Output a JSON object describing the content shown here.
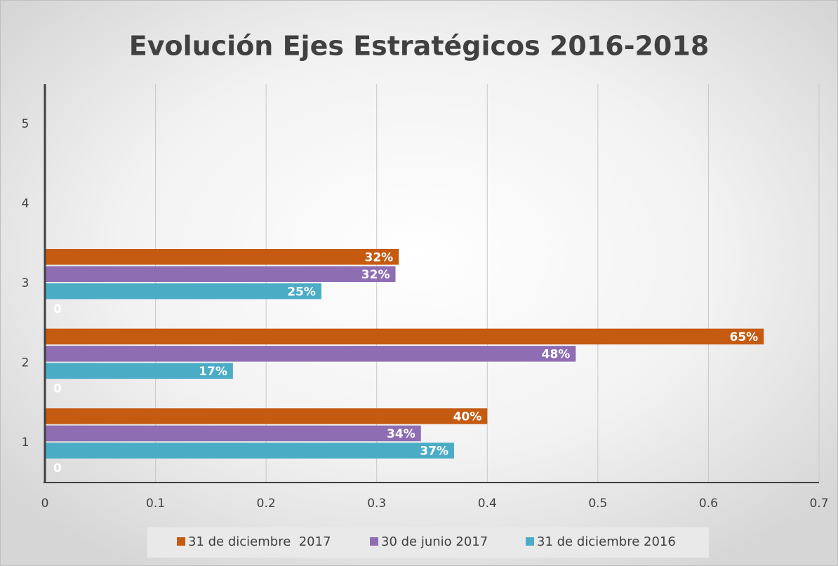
{
  "chart_data": {
    "type": "hbar",
    "title": "Evolución Ejes Estratégicos 2016-2018",
    "categories": [
      "1",
      "2",
      "3",
      "4",
      "5"
    ],
    "series": [
      {
        "name": "31 de diciembre  2017",
        "color": "#c55a11",
        "values": [
          0.4,
          0.65,
          0.32,
          null,
          null
        ],
        "value_labels": [
          "40%",
          "65%",
          "32%",
          null,
          null
        ]
      },
      {
        "name": "30 de junio 2017",
        "color": "#8e6db3",
        "values": [
          0.34,
          0.48,
          0.317,
          null,
          null
        ],
        "value_labels": [
          "34%",
          "48%",
          "32%",
          null,
          null
        ]
      },
      {
        "name": "31 de diciembre 2016",
        "color": "#4bacc6",
        "values": [
          0.37,
          0.17,
          0.25,
          null,
          null
        ],
        "value_labels": [
          "37%",
          "17%",
          "25%",
          null,
          null
        ]
      },
      {
        "values": [
          0,
          0,
          0,
          null,
          null
        ]
      }
    ],
    "xlim": [
      0,
      0.7
    ],
    "xticks": [
      0,
      0.1,
      0.2,
      0.3,
      0.4,
      0.5,
      0.6,
      0.7
    ],
    "grid": true,
    "legend": "bottom"
  }
}
